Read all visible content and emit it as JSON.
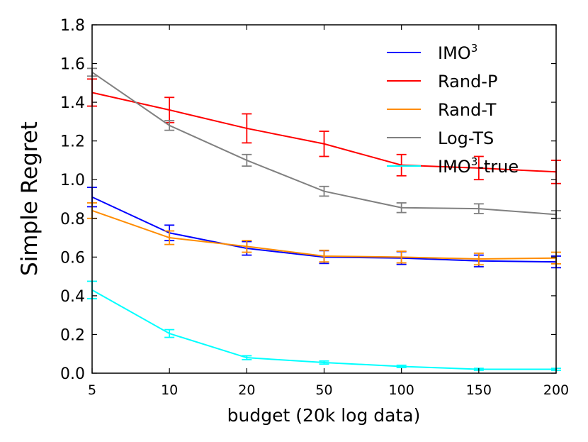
{
  "chart_data": {
    "type": "line",
    "title": "",
    "xlabel": "budget (20k log data)",
    "ylabel": "Simple Regret",
    "x_categories": [
      "5",
      "10",
      "20",
      "50",
      "100",
      "150",
      "200"
    ],
    "ylim": [
      0.0,
      1.8
    ],
    "yticks": [
      "0.0",
      "0.2",
      "0.4",
      "0.6",
      "0.8",
      "1.0",
      "1.2",
      "1.4",
      "1.6",
      "1.8"
    ],
    "grid": false,
    "legend_position": "top-right",
    "series": [
      {
        "name": "IMO",
        "name_sup": "3",
        "name_suffix": "",
        "color": "#0000ff",
        "values": [
          0.91,
          0.725,
          0.645,
          0.6,
          0.595,
          0.58,
          0.575
        ],
        "errors": [
          0.05,
          0.04,
          0.035,
          0.033,
          0.033,
          0.03,
          0.03
        ]
      },
      {
        "name": "Rand-P",
        "name_sup": "",
        "name_suffix": "",
        "color": "#ff0000",
        "values": [
          1.45,
          1.36,
          1.265,
          1.185,
          1.075,
          1.06,
          1.04
        ],
        "errors": [
          0.07,
          0.065,
          0.075,
          0.065,
          0.055,
          0.06,
          0.06
        ]
      },
      {
        "name": "Rand-T",
        "name_sup": "",
        "name_suffix": "",
        "color": "#ff8c00",
        "values": [
          0.84,
          0.7,
          0.655,
          0.605,
          0.6,
          0.59,
          0.595
        ],
        "errors": [
          0.04,
          0.035,
          0.03,
          0.03,
          0.03,
          0.03,
          0.03
        ]
      },
      {
        "name": "Log-TS",
        "name_sup": "",
        "name_suffix": "",
        "color": "#808080",
        "values": [
          1.555,
          1.28,
          1.1,
          0.94,
          0.855,
          0.85,
          0.82
        ],
        "errors": [
          0.02,
          0.025,
          0.03,
          0.025,
          0.025,
          0.025,
          0.02
        ]
      },
      {
        "name": "IMO",
        "name_sup": "3",
        "name_suffix": "-true",
        "color": "#00ffff",
        "values": [
          0.43,
          0.205,
          0.08,
          0.055,
          0.035,
          0.02,
          0.02
        ],
        "errors": [
          0.045,
          0.02,
          0.01,
          0.008,
          0.006,
          0.005,
          0.005
        ]
      }
    ]
  }
}
